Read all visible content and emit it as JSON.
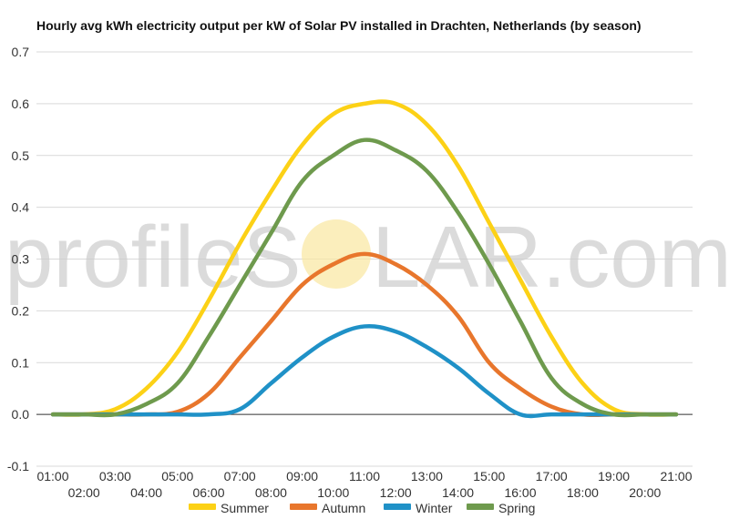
{
  "title": "Hourly avg kWh electricity output per kW of Solar PV installed in Drachten, Netherlands (by season)",
  "watermark": {
    "text_left": "profileS",
    "text_right": "LAR.com",
    "sun_color": "#f9e79f"
  },
  "chart_data": {
    "type": "line",
    "title": "Hourly avg kWh electricity output per kW of Solar PV installed in Drachten, Netherlands (by season)",
    "xlabel": "",
    "ylabel": "",
    "ylim": [
      -0.1,
      0.7
    ],
    "yticks": [
      "-0.1",
      "0.0",
      "0.1",
      "0.2",
      "0.3",
      "0.4",
      "0.5",
      "0.6",
      "0.7"
    ],
    "grid": true,
    "legend_position": "bottom",
    "categories": [
      "01:00",
      "02:00",
      "03:00",
      "04:00",
      "05:00",
      "06:00",
      "07:00",
      "08:00",
      "09:00",
      "10:00",
      "11:00",
      "12:00",
      "13:00",
      "14:00",
      "15:00",
      "16:00",
      "17:00",
      "18:00",
      "19:00",
      "20:00",
      "21:00"
    ],
    "series": [
      {
        "name": "Summer",
        "color": "#fcd116",
        "values": [
          0.0,
          0.0,
          0.01,
          0.05,
          0.12,
          0.22,
          0.33,
          0.43,
          0.52,
          0.58,
          0.6,
          0.6,
          0.56,
          0.48,
          0.37,
          0.26,
          0.15,
          0.06,
          0.01,
          0.0,
          0.0
        ]
      },
      {
        "name": "Autumn",
        "color": "#e8762c",
        "values": [
          0.0,
          0.0,
          0.0,
          0.0,
          0.005,
          0.04,
          0.11,
          0.18,
          0.25,
          0.29,
          0.31,
          0.29,
          0.25,
          0.19,
          0.1,
          0.05,
          0.015,
          0.0,
          0.0,
          0.0,
          0.0
        ]
      },
      {
        "name": "Winter",
        "color": "#1f91c7",
        "values": [
          0.0,
          0.0,
          0.0,
          0.0,
          0.0,
          0.0,
          0.01,
          0.06,
          0.11,
          0.15,
          0.17,
          0.16,
          0.13,
          0.09,
          0.04,
          0.0,
          0.0,
          0.0,
          0.0,
          0.0,
          0.0
        ]
      },
      {
        "name": "Spring",
        "color": "#6e9a4d",
        "values": [
          0.0,
          0.0,
          0.0,
          0.02,
          0.06,
          0.15,
          0.25,
          0.35,
          0.45,
          0.5,
          0.53,
          0.51,
          0.47,
          0.39,
          0.29,
          0.18,
          0.07,
          0.02,
          0.0,
          0.0,
          0.0
        ]
      }
    ]
  }
}
